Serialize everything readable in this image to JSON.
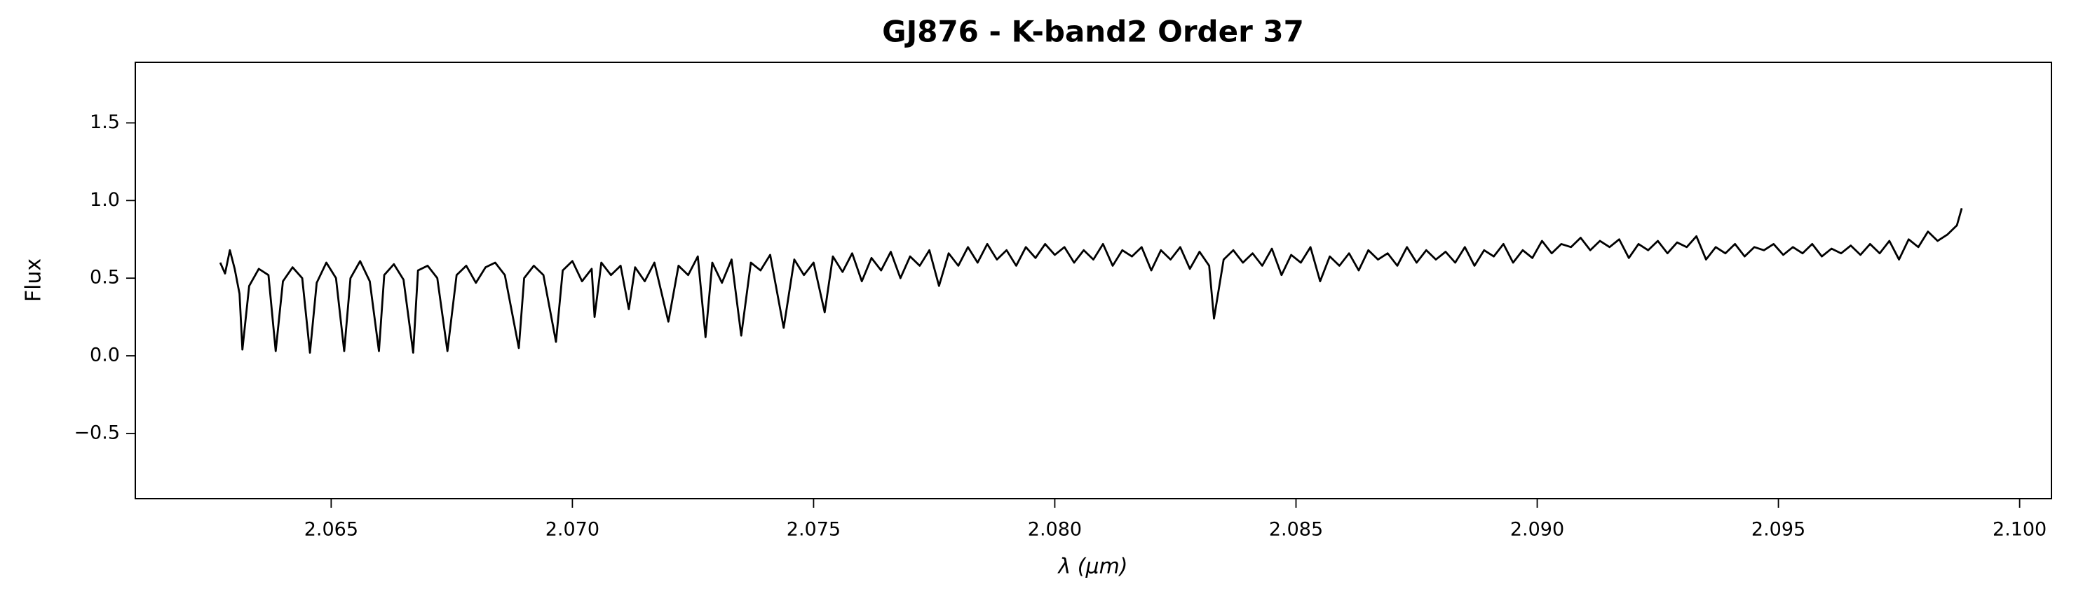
{
  "chart_data": {
    "type": "line",
    "title": "GJ876 - K-band2 Order 37",
    "xlabel": "λ (μm)",
    "ylabel": "Flux",
    "color": "#000000",
    "grid": false,
    "xlim": [
      2.06094,
      2.10066
    ],
    "ylim": [
      -0.92,
      1.89
    ],
    "xticks": [
      2.065,
      {
        "value": 2.07,
        "label": "2.070"
      },
      2.075,
      {
        "value": 2.08,
        "label": "2.080"
      },
      2.085,
      {
        "value": 2.09,
        "label": "2.090"
      },
      2.095,
      {
        "value": 2.1,
        "label": "2.100"
      }
    ],
    "yticks": [
      {
        "value": -0.5,
        "label": "−0.5"
      },
      {
        "value": 0,
        "label": "0.0"
      },
      0.5,
      {
        "value": 1,
        "label": "1.0"
      },
      1.5
    ],
    "x": [
      2.0627,
      2.0628,
      2.0629,
      2.063,
      2.0631,
      2.06316,
      2.0633,
      2.0635,
      2.0637,
      2.06385,
      2.064,
      2.0642,
      2.0644,
      2.06456,
      2.0647,
      2.0649,
      2.0651,
      2.06527,
      2.0654,
      2.0656,
      2.0658,
      2.06599,
      2.0661,
      2.0663,
      2.0665,
      2.0667,
      2.0668,
      2.067,
      2.0672,
      2.06741,
      2.0676,
      2.0678,
      2.068,
      2.0682,
      2.0684,
      2.0686,
      2.06889,
      2.069,
      2.0692,
      2.0694,
      2.06966,
      2.0698,
      2.07,
      2.0702,
      2.0704,
      2.07046,
      2.0706,
      2.0708,
      2.071,
      2.07117,
      2.0713,
      2.0715,
      2.0717,
      2.07199,
      2.0722,
      2.0724,
      2.0726,
      2.07276,
      2.0729,
      2.0731,
      2.0733,
      2.0735,
      2.0737,
      2.0739,
      2.0741,
      2.07438,
      2.0746,
      2.0748,
      2.075,
      2.07523,
      2.0754,
      2.0756,
      2.0758,
      2.076,
      2.0762,
      2.0764,
      2.0766,
      2.0768,
      2.077,
      2.0772,
      2.0774,
      2.0776,
      2.0778,
      2.078,
      2.0782,
      2.0784,
      2.0786,
      2.0788,
      2.079,
      2.0792,
      2.0794,
      2.0796,
      2.0798,
      2.08,
      2.0802,
      2.0804,
      2.0806,
      2.0808,
      2.081,
      2.0812,
      2.0814,
      2.0816,
      2.0818,
      2.082,
      2.0822,
      2.0824,
      2.0826,
      2.0828,
      2.083,
      2.0832,
      2.0833,
      2.0835,
      2.0837,
      2.0839,
      2.0841,
      2.0843,
      2.0845,
      2.0847,
      2.0849,
      2.0851,
      2.0853,
      2.0855,
      2.0857,
      2.0859,
      2.0861,
      2.0863,
      2.0865,
      2.0867,
      2.0869,
      2.0871,
      2.0873,
      2.0875,
      2.0877,
      2.0879,
      2.0881,
      2.0883,
      2.0885,
      2.0887,
      2.0889,
      2.0891,
      2.0893,
      2.0895,
      2.0897,
      2.0899,
      2.0901,
      2.0903,
      2.0905,
      2.0907,
      2.0909,
      2.0911,
      2.0913,
      2.0915,
      2.0917,
      2.0919,
      2.0921,
      2.0923,
      2.0925,
      2.0927,
      2.0929,
      2.0931,
      2.0933,
      2.0935,
      2.0937,
      2.0939,
      2.0941,
      2.0943,
      2.0945,
      2.0947,
      2.0949,
      2.0951,
      2.0953,
      2.0955,
      2.0957,
      2.0959,
      2.0961,
      2.0963,
      2.0965,
      2.0967,
      2.0969,
      2.0971,
      2.0973,
      2.0975,
      2.0977,
      2.0979,
      2.0981,
      2.0983,
      2.0985,
      2.0987,
      2.0988
    ],
    "values": [
      0.6,
      0.53,
      0.68,
      0.56,
      0.4,
      0.04,
      0.45,
      0.56,
      0.52,
      0.03,
      0.48,
      0.57,
      0.5,
      0.02,
      0.47,
      0.6,
      0.5,
      0.03,
      0.5,
      0.61,
      0.48,
      0.03,
      0.52,
      0.59,
      0.49,
      0.02,
      0.55,
      0.58,
      0.5,
      0.03,
      0.52,
      0.58,
      0.47,
      0.57,
      0.6,
      0.52,
      0.05,
      0.5,
      0.58,
      0.52,
      0.09,
      0.55,
      0.61,
      0.48,
      0.56,
      0.25,
      0.6,
      0.52,
      0.58,
      0.3,
      0.57,
      0.48,
      0.6,
      0.22,
      0.58,
      0.52,
      0.64,
      0.12,
      0.6,
      0.47,
      0.62,
      0.13,
      0.6,
      0.55,
      0.65,
      0.18,
      0.62,
      0.52,
      0.6,
      0.28,
      0.64,
      0.54,
      0.66,
      0.48,
      0.63,
      0.55,
      0.67,
      0.5,
      0.64,
      0.58,
      0.68,
      0.45,
      0.66,
      0.58,
      0.7,
      0.6,
      0.72,
      0.62,
      0.68,
      0.58,
      0.7,
      0.63,
      0.72,
      0.65,
      0.7,
      0.6,
      0.68,
      0.62,
      0.72,
      0.58,
      0.68,
      0.64,
      0.7,
      0.55,
      0.68,
      0.62,
      0.7,
      0.56,
      0.67,
      0.58,
      0.24,
      0.62,
      0.68,
      0.6,
      0.66,
      0.58,
      0.69,
      0.52,
      0.65,
      0.6,
      0.7,
      0.48,
      0.64,
      0.58,
      0.66,
      0.55,
      0.68,
      0.62,
      0.66,
      0.58,
      0.7,
      0.6,
      0.68,
      0.62,
      0.67,
      0.6,
      0.7,
      0.58,
      0.68,
      0.64,
      0.72,
      0.6,
      0.68,
      0.63,
      0.74,
      0.66,
      0.72,
      0.7,
      0.76,
      0.68,
      0.74,
      0.7,
      0.75,
      0.63,
      0.72,
      0.68,
      0.74,
      0.66,
      0.73,
      0.7,
      0.77,
      0.62,
      0.7,
      0.66,
      0.72,
      0.64,
      0.7,
      0.68,
      0.72,
      0.65,
      0.7,
      0.66,
      0.72,
      0.64,
      0.69,
      0.66,
      0.71,
      0.65,
      0.72,
      0.66,
      0.74,
      0.62,
      0.75,
      0.7,
      0.8,
      0.74,
      0.78,
      0.84,
      0.95
    ]
  }
}
